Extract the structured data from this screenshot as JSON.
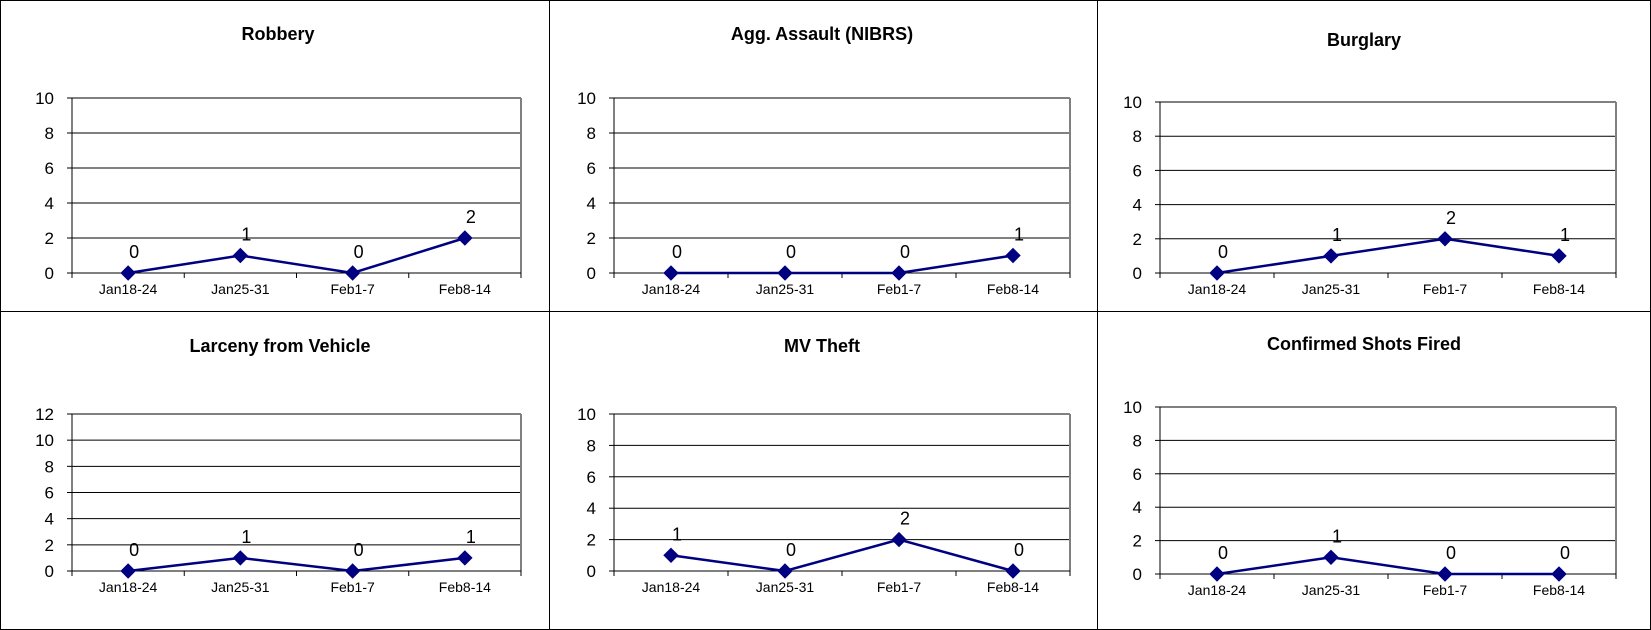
{
  "chart_data": [
    {
      "type": "line",
      "title": "Robbery",
      "categories": [
        "Jan18-24",
        "Jan25-31",
        "Feb1-7",
        "Feb8-14"
      ],
      "values": [
        0,
        1,
        0,
        2
      ],
      "ylim": [
        0,
        10
      ],
      "yticks": [
        0,
        2,
        4,
        6,
        8,
        10
      ],
      "grid": true,
      "data_labels": true,
      "color": "#000080"
    },
    {
      "type": "line",
      "title": "Agg. Assault (NIBRS)",
      "categories": [
        "Jan18-24",
        "Jan25-31",
        "Feb1-7",
        "Feb8-14"
      ],
      "values": [
        0,
        0,
        0,
        1
      ],
      "ylim": [
        0,
        10
      ],
      "yticks": [
        0,
        2,
        4,
        6,
        8,
        10
      ],
      "grid": true,
      "data_labels": true,
      "color": "#000080"
    },
    {
      "type": "line",
      "title": "Burglary",
      "categories": [
        "Jan18-24",
        "Jan25-31",
        "Feb1-7",
        "Feb8-14"
      ],
      "values": [
        0,
        1,
        2,
        1
      ],
      "ylim": [
        0,
        10
      ],
      "yticks": [
        0,
        2,
        4,
        6,
        8,
        10
      ],
      "grid": true,
      "data_labels": true,
      "color": "#000080"
    },
    {
      "type": "line",
      "title": "Larceny from Vehicle",
      "categories": [
        "Jan18-24",
        "Jan25-31",
        "Feb1-7",
        "Feb8-14"
      ],
      "values": [
        0,
        1,
        0,
        1
      ],
      "ylim": [
        0,
        12
      ],
      "yticks": [
        0,
        2,
        4,
        6,
        8,
        10,
        12
      ],
      "grid": true,
      "data_labels": true,
      "color": "#000080"
    },
    {
      "type": "line",
      "title": "MV Theft",
      "categories": [
        "Jan18-24",
        "Jan25-31",
        "Feb1-7",
        "Feb8-14"
      ],
      "values": [
        1,
        0,
        2,
        0
      ],
      "ylim": [
        0,
        10
      ],
      "yticks": [
        0,
        2,
        4,
        6,
        8,
        10
      ],
      "grid": true,
      "data_labels": true,
      "color": "#000080"
    },
    {
      "type": "line",
      "title": "Confirmed Shots Fired",
      "categories": [
        "Jan18-24",
        "Jan25-31",
        "Feb1-7",
        "Feb8-14"
      ],
      "values": [
        0,
        1,
        0,
        0
      ],
      "ylim": [
        0,
        10
      ],
      "yticks": [
        0,
        2,
        4,
        6,
        8,
        10
      ],
      "grid": true,
      "data_labels": true,
      "color": "#000080"
    }
  ]
}
